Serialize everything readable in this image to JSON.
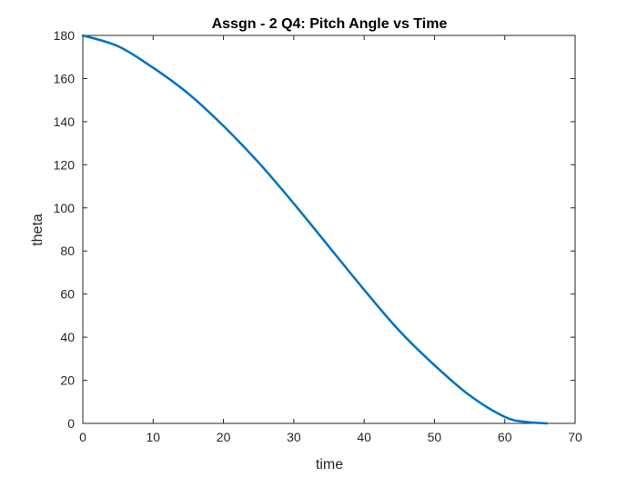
{
  "chart_data": {
    "type": "line",
    "title": "Assgn - 2 Q4: Pitch Angle vs Time",
    "xlabel": "time",
    "ylabel": "theta",
    "xlim": [
      0,
      70
    ],
    "ylim": [
      0,
      180
    ],
    "x_ticks": [
      0,
      10,
      20,
      30,
      40,
      50,
      60,
      70
    ],
    "y_ticks": [
      0,
      20,
      40,
      60,
      80,
      100,
      120,
      140,
      160,
      180
    ],
    "x_tick_labels": [
      "0",
      "10",
      "20",
      "30",
      "40",
      "50",
      "60",
      "70"
    ],
    "y_tick_labels": [
      "0",
      "20",
      "40",
      "60",
      "80",
      "100",
      "120",
      "140",
      "160",
      "180"
    ],
    "grid": false,
    "series": [
      {
        "color": "#0072BD",
        "x": [
          0,
          5,
          10,
          15,
          20,
          25,
          30,
          35,
          40,
          45,
          50,
          55,
          60,
          63,
          66
        ],
        "y": [
          180,
          175,
          165,
          153,
          138,
          121,
          102,
          82,
          62,
          43,
          27,
          13,
          3,
          0.7,
          0
        ]
      }
    ]
  }
}
